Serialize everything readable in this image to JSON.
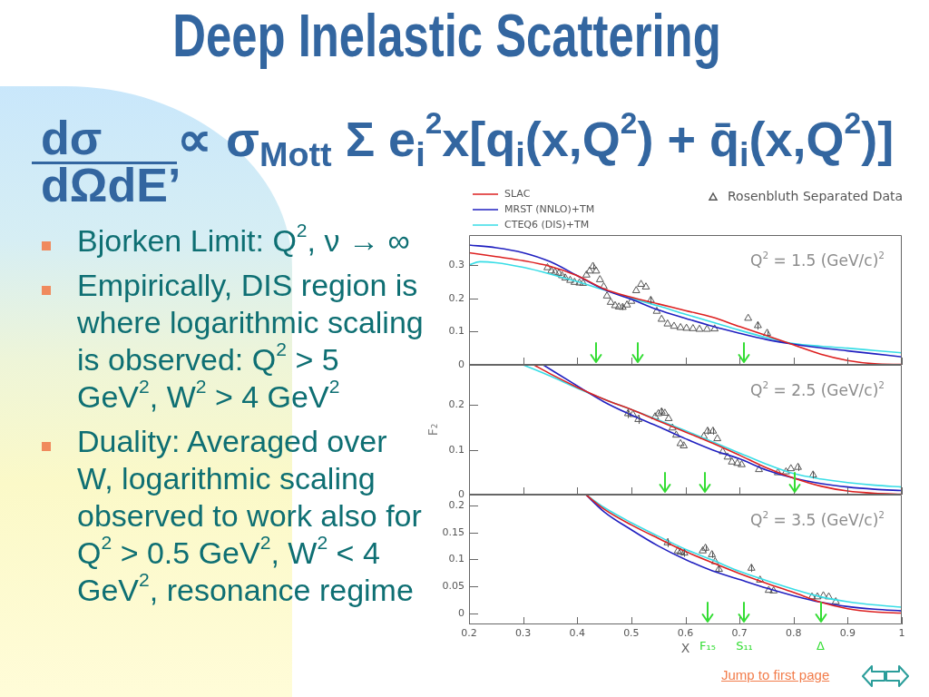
{
  "chart_data": [
    {
      "type": "other",
      "title": "Deep Inelastic Scattering",
      "annotations": [
        "dσ",
        "dΩdE’",
        "∝ σ$_{Mott}$ Σ e$_{i}$$^{2}$x[q$_{i}$(x,Q$^{2}$) + q̄$_{i}$(x,Q$^{2}$)]",
        "Bjorken Limit: Q$^{2}$, ν → ∞",
        "Empirically, DIS region is where logarithmic scaling is observed: Q$^{2}$ > 5 GeV$^{2}$, W$^{2}$ > 4 GeV$^{2}$",
        "Duality: Averaged over W, logarithmic scaling observed to work also for Q$^{2}$ > 0.5 GeV$^{2}$, W$^{2}$ < 4 GeV$^{2}$, resonance regime",
        "Jump to first page"
      ]
    },
    {
      "type": "line",
      "legend": "top",
      "tick_labels": "y",
      "xlim": [
        0.2,
        1
      ],
      "xticks": [
        0.2,
        0.3,
        0.4,
        0.5,
        0.6,
        0.7,
        0.8,
        0.9,
        1
      ],
      "ylim": [
        0,
        0.39
      ],
      "yticks": [
        0,
        0.1,
        0.2,
        0.3
      ],
      "annotations": [
        "Q$^{2}$ = 1.5 (GeV/c)$^{2}$"
      ],
      "ref_lines": [
        {
          "axis": "x",
          "value": 0.435,
          "color": "#33dd33"
        },
        {
          "axis": "x",
          "value": 0.512,
          "color": "#33dd33"
        },
        {
          "axis": "x",
          "value": 0.708,
          "color": "#33dd33"
        }
      ],
      "series": [
        {
          "name": "SLAC",
          "type": "line",
          "color": "#dd2020",
          "x": [
            0.2,
            0.25,
            0.3,
            0.35,
            0.4,
            0.45,
            0.5,
            0.55,
            0.6,
            0.65,
            0.7,
            0.75,
            0.8,
            0.85,
            0.9,
            0.95,
            1
          ],
          "values": [
            0.337,
            0.325,
            0.313,
            0.296,
            0.268,
            0.228,
            0.203,
            0.183,
            0.163,
            0.143,
            0.115,
            0.088,
            0.06,
            0.032,
            0.013,
            0.003,
            0.001
          ]
        },
        {
          "name": "MRST (NNLO)+TM",
          "type": "line",
          "color": "#2020c0",
          "x": [
            0.2,
            0.25,
            0.3,
            0.35,
            0.4,
            0.45,
            0.5,
            0.55,
            0.6,
            0.65,
            0.7,
            0.75,
            0.8,
            0.85,
            0.9,
            0.95,
            1
          ],
          "values": [
            0.36,
            0.352,
            0.337,
            0.31,
            0.268,
            0.226,
            0.197,
            0.165,
            0.14,
            0.116,
            0.095,
            0.076,
            0.062,
            0.051,
            0.042,
            0.033,
            0.024
          ]
        },
        {
          "name": "CTEQ6 (DIS)+TM",
          "type": "line",
          "color": "#38dde6",
          "x": [
            0.2,
            0.22,
            0.25,
            0.3,
            0.35,
            0.4,
            0.45,
            0.5,
            0.55,
            0.6,
            0.65,
            0.7,
            0.75,
            0.8,
            0.85,
            0.9,
            0.95,
            1
          ],
          "values": [
            0.3,
            0.31,
            0.307,
            0.293,
            0.273,
            0.25,
            0.225,
            0.2,
            0.177,
            0.152,
            0.128,
            0.104,
            0.082,
            0.064,
            0.056,
            0.05,
            0.043,
            0.036
          ]
        },
        {
          "name": "Rosenbluth Separated Data",
          "type": "scatter",
          "marker": "triangle",
          "color": "#555555",
          "x": [
            0.345,
            0.352,
            0.359,
            0.366,
            0.372,
            0.378,
            0.387,
            0.395,
            0.404,
            0.411,
            0.417,
            0.423,
            0.429,
            0.435,
            0.442,
            0.449,
            0.455,
            0.462,
            0.47,
            0.477,
            0.484,
            0.492,
            0.5,
            0.509,
            0.518,
            0.527,
            0.536,
            0.547,
            0.556,
            0.567,
            0.579,
            0.591,
            0.602,
            0.614,
            0.626,
            0.64,
            0.654,
            0.716,
            0.734,
            0.751
          ],
          "values": [
            0.292,
            0.282,
            0.278,
            0.275,
            0.268,
            0.261,
            0.254,
            0.248,
            0.246,
            0.245,
            0.27,
            0.282,
            0.296,
            0.282,
            0.256,
            0.235,
            0.207,
            0.188,
            0.178,
            0.174,
            0.173,
            0.18,
            0.191,
            0.223,
            0.242,
            0.234,
            0.194,
            0.161,
            0.137,
            0.123,
            0.116,
            0.112,
            0.11,
            0.109,
            0.107,
            0.107,
            0.108,
            0.14,
            0.118,
            0.095
          ],
          "errors": [
            null,
            null,
            null,
            null,
            null,
            null,
            null,
            null,
            null,
            null,
            null,
            null,
            0.01,
            null,
            null,
            null,
            null,
            null,
            null,
            null,
            0.008,
            null,
            null,
            null,
            null,
            null,
            0.01,
            null,
            null,
            null,
            null,
            null,
            null,
            null,
            null,
            null,
            null,
            null,
            0.012,
            0.01
          ]
        }
      ]
    },
    {
      "type": "line",
      "tick_labels": "y",
      "ylabel": "F₂",
      "xlim": [
        0.2,
        1
      ],
      "xticks": [
        0.2,
        0.3,
        0.4,
        0.5,
        0.6,
        0.7,
        0.8,
        0.9,
        1
      ],
      "ylim": [
        0,
        0.29
      ],
      "yticks": [
        0,
        0.1,
        0.2
      ],
      "annotations": [
        "Q$^{2}$ = 2.5 (GeV/c)$^{2}$"
      ],
      "ref_lines": [
        {
          "axis": "x",
          "value": 0.562,
          "color": "#33dd33"
        },
        {
          "axis": "x",
          "value": 0.636,
          "color": "#33dd33"
        },
        {
          "axis": "x",
          "value": 0.802,
          "color": "#33dd33"
        }
      ],
      "series": [
        {
          "type": "line",
          "color": "#dd2020",
          "x": [
            0.32,
            0.35,
            0.4,
            0.45,
            0.5,
            0.55,
            0.6,
            0.65,
            0.7,
            0.75,
            0.8,
            0.85,
            0.9,
            0.95,
            1
          ],
          "values": [
            0.29,
            0.27,
            0.24,
            0.213,
            0.19,
            0.165,
            0.14,
            0.115,
            0.088,
            0.06,
            0.037,
            0.019,
            0.008,
            0.003,
            0.001
          ]
        },
        {
          "type": "line",
          "color": "#2020c0",
          "x": [
            0.337,
            0.4,
            0.45,
            0.5,
            0.55,
            0.6,
            0.65,
            0.7,
            0.75,
            0.8,
            0.85,
            0.9,
            0.95,
            1
          ],
          "values": [
            0.29,
            0.243,
            0.207,
            0.178,
            0.152,
            0.125,
            0.1,
            0.08,
            0.055,
            0.037,
            0.025,
            0.017,
            0.012,
            0.009
          ]
        },
        {
          "type": "line",
          "color": "#38dde6",
          "x": [
            0.3,
            0.35,
            0.4,
            0.45,
            0.5,
            0.55,
            0.6,
            0.65,
            0.7,
            0.75,
            0.8,
            0.85,
            0.9,
            0.95,
            1
          ],
          "values": [
            0.29,
            0.265,
            0.238,
            0.213,
            0.19,
            0.167,
            0.143,
            0.118,
            0.093,
            0.068,
            0.047,
            0.035,
            0.027,
            0.021,
            0.017
          ]
        },
        {
          "type": "scatter",
          "marker": "triangle",
          "color": "#555555",
          "x": [
            0.494,
            0.503,
            0.513,
            0.544,
            0.55,
            0.556,
            0.562,
            0.569,
            0.576,
            0.583,
            0.591,
            0.597,
            0.634,
            0.641,
            0.651,
            0.659,
            0.669,
            0.678,
            0.686,
            0.696,
            0.704,
            0.736,
            0.771,
            0.786,
            0.795,
            0.808,
            0.836
          ],
          "values": [
            0.181,
            0.179,
            0.168,
            0.174,
            0.181,
            0.185,
            0.182,
            0.17,
            0.149,
            0.133,
            0.114,
            0.109,
            0.13,
            0.142,
            0.142,
            0.125,
            0.096,
            0.084,
            0.073,
            0.07,
            0.067,
            0.056,
            0.049,
            0.051,
            0.058,
            0.061,
            0.044
          ],
          "errors": [
            0.01,
            null,
            0.01,
            null,
            null,
            0.008,
            null,
            null,
            null,
            null,
            null,
            null,
            null,
            0.008,
            0.008,
            null,
            null,
            null,
            null,
            null,
            null,
            null,
            null,
            null,
            null,
            0.008,
            0.008
          ]
        }
      ]
    },
    {
      "type": "line",
      "xlabel": "X",
      "xlim": [
        0.2,
        1
      ],
      "xticks": [
        0.2,
        0.3,
        0.4,
        0.5,
        0.6,
        0.7,
        0.8,
        0.9,
        1
      ],
      "ylim": [
        -0.02,
        0.22
      ],
      "yticks": [
        0,
        0.05,
        0.1,
        0.15,
        0.2
      ],
      "annotations": [
        "Q$^{2}$ = 3.5 (GeV/c)$^{2}$"
      ],
      "ref_lines": [
        {
          "axis": "x",
          "value": 0.641,
          "label": "F₁₅",
          "color": "#33dd33"
        },
        {
          "axis": "x",
          "value": 0.709,
          "label": "S₁₁",
          "color": "#33dd33"
        },
        {
          "axis": "x",
          "value": 0.85,
          "label": "Δ",
          "color": "#33dd33"
        }
      ],
      "series": [
        {
          "type": "line",
          "color": "#dd2020",
          "x": [
            0.416,
            0.45,
            0.5,
            0.55,
            0.6,
            0.65,
            0.7,
            0.75,
            0.8,
            0.85,
            0.9,
            0.95,
            1
          ],
          "values": [
            0.22,
            0.193,
            0.164,
            0.139,
            0.115,
            0.094,
            0.074,
            0.056,
            0.039,
            0.021,
            0.009,
            0.003,
            0.001
          ]
        },
        {
          "type": "line",
          "color": "#2020c0",
          "x": [
            0.416,
            0.45,
            0.5,
            0.55,
            0.6,
            0.65,
            0.7,
            0.75,
            0.8,
            0.85,
            0.9,
            0.95,
            1
          ],
          "values": [
            0.22,
            0.188,
            0.155,
            0.125,
            0.1,
            0.079,
            0.063,
            0.047,
            0.033,
            0.021,
            0.013,
            0.008,
            0.005
          ]
        },
        {
          "type": "line",
          "color": "#38dde6",
          "x": [
            0.416,
            0.45,
            0.5,
            0.55,
            0.6,
            0.65,
            0.7,
            0.75,
            0.8,
            0.85,
            0.9,
            0.95,
            1
          ],
          "values": [
            0.22,
            0.196,
            0.168,
            0.143,
            0.119,
            0.099,
            0.078,
            0.061,
            0.045,
            0.031,
            0.022,
            0.016,
            0.012
          ]
        },
        {
          "type": "scatter",
          "marker": "triangle",
          "color": "#555555",
          "x": [
            0.567,
            0.586,
            0.591,
            0.598,
            0.632,
            0.637,
            0.649,
            0.655,
            0.662,
            0.722,
            0.738,
            0.754,
            0.763,
            0.834,
            0.844,
            0.855,
            0.865,
            0.878
          ],
          "values": [
            0.131,
            0.116,
            0.114,
            0.112,
            0.116,
            0.121,
            0.109,
            0.096,
            0.082,
            0.084,
            0.062,
            0.043,
            0.042,
            0.031,
            0.031,
            0.033,
            0.031,
            0.022
          ],
          "errors": [
            0.008,
            null,
            null,
            0.007,
            null,
            0.006,
            0.006,
            null,
            0.006,
            0.007,
            null,
            null,
            null,
            null,
            null,
            null,
            null,
            null
          ]
        }
      ]
    }
  ]
}
